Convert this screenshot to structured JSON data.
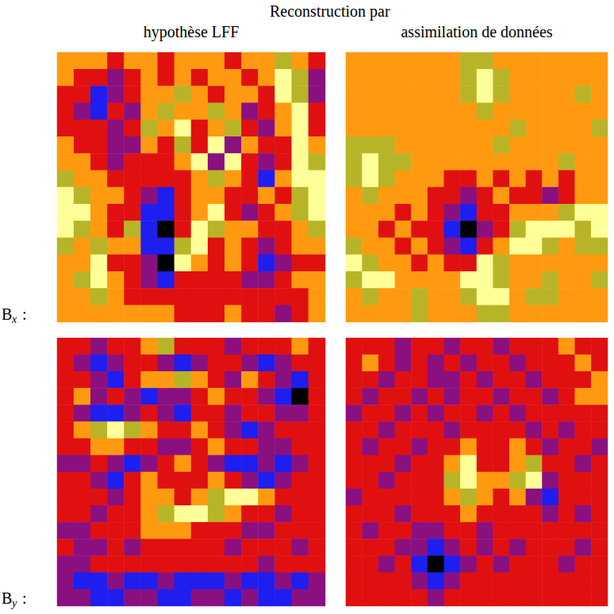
{
  "header": {
    "title": "Reconstruction par",
    "columns": [
      "hypothèse LFF",
      "assimilation de données"
    ]
  },
  "rows": [
    {
      "symbol": "B",
      "subscript": "x",
      "suffix": ":"
    },
    {
      "symbol": "B",
      "subscript": "y",
      "suffix": ":"
    }
  ],
  "chart_data": [
    {
      "type": "heatmap",
      "color_range": [
        0,
        6
      ],
      "cells": [
        [
          4,
          4,
          4,
          3,
          4,
          4,
          3,
          4,
          4,
          4,
          3,
          4,
          4,
          5,
          4,
          3
        ],
        [
          4,
          3,
          3,
          2,
          3,
          4,
          3,
          4,
          3,
          4,
          4,
          3,
          4,
          6,
          5,
          2
        ],
        [
          3,
          3,
          1,
          2,
          3,
          4,
          4,
          5,
          4,
          3,
          4,
          4,
          3,
          6,
          5,
          2
        ],
        [
          3,
          2,
          1,
          3,
          2,
          4,
          5,
          4,
          4,
          5,
          4,
          2,
          3,
          4,
          6,
          3
        ],
        [
          3,
          3,
          3,
          2,
          3,
          5,
          4,
          6,
          3,
          4,
          5,
          3,
          2,
          4,
          6,
          3
        ],
        [
          4,
          3,
          3,
          2,
          2,
          4,
          3,
          5,
          3,
          6,
          2,
          4,
          3,
          3,
          6,
          4
        ],
        [
          4,
          4,
          3,
          2,
          3,
          3,
          3,
          4,
          6,
          2,
          6,
          3,
          2,
          3,
          6,
          5
        ],
        [
          5,
          4,
          4,
          3,
          3,
          3,
          3,
          3,
          4,
          5,
          4,
          3,
          1,
          4,
          6,
          6
        ],
        [
          6,
          5,
          4,
          4,
          3,
          2,
          1,
          3,
          4,
          4,
          3,
          3,
          4,
          3,
          5,
          6
        ],
        [
          6,
          6,
          4,
          3,
          3,
          1,
          1,
          3,
          4,
          6,
          3,
          2,
          3,
          4,
          5,
          6
        ],
        [
          6,
          5,
          4,
          3,
          5,
          1,
          0,
          3,
          6,
          5,
          4,
          4,
          3,
          3,
          4,
          5
        ],
        [
          5,
          4,
          5,
          4,
          4,
          1,
          1,
          5,
          6,
          3,
          4,
          3,
          2,
          3,
          4,
          4
        ],
        [
          4,
          4,
          6,
          3,
          3,
          2,
          0,
          6,
          4,
          3,
          4,
          3,
          1,
          2,
          3,
          3
        ],
        [
          4,
          5,
          6,
          4,
          3,
          2,
          1,
          3,
          3,
          3,
          3,
          2,
          2,
          3,
          4,
          4
        ],
        [
          4,
          4,
          5,
          4,
          3,
          3,
          3,
          3,
          3,
          3,
          3,
          3,
          3,
          3,
          3,
          4
        ],
        [
          4,
          4,
          4,
          4,
          4,
          4,
          4,
          3,
          3,
          3,
          4,
          3,
          3,
          2,
          3,
          4
        ]
      ]
    },
    {
      "type": "heatmap",
      "color_range": [
        0,
        6
      ],
      "cells": [
        [
          4,
          4,
          4,
          4,
          4,
          4,
          4,
          5,
          5,
          4,
          4,
          4,
          4,
          4,
          4,
          4
        ],
        [
          4,
          4,
          4,
          4,
          4,
          4,
          4,
          5,
          6,
          5,
          4,
          4,
          4,
          4,
          4,
          4
        ],
        [
          4,
          4,
          4,
          4,
          4,
          4,
          4,
          5,
          6,
          5,
          4,
          4,
          4,
          4,
          5,
          4
        ],
        [
          4,
          4,
          4,
          4,
          4,
          4,
          4,
          4,
          5,
          4,
          4,
          4,
          4,
          4,
          4,
          4
        ],
        [
          4,
          4,
          4,
          4,
          4,
          4,
          4,
          4,
          4,
          4,
          5,
          4,
          4,
          4,
          4,
          5
        ],
        [
          5,
          5,
          5,
          4,
          4,
          4,
          4,
          4,
          4,
          5,
          4,
          4,
          4,
          4,
          4,
          4
        ],
        [
          5,
          6,
          5,
          5,
          4,
          4,
          4,
          4,
          4,
          4,
          4,
          4,
          4,
          5,
          4,
          4
        ],
        [
          5,
          6,
          5,
          4,
          4,
          4,
          3,
          3,
          4,
          3,
          4,
          3,
          4,
          3,
          4,
          4
        ],
        [
          4,
          5,
          4,
          4,
          4,
          3,
          3,
          2,
          3,
          4,
          3,
          3,
          2,
          3,
          4,
          4
        ],
        [
          4,
          4,
          4,
          3,
          4,
          3,
          2,
          1,
          3,
          3,
          4,
          4,
          4,
          5,
          6,
          6
        ],
        [
          4,
          4,
          3,
          4,
          3,
          3,
          1,
          0,
          2,
          3,
          5,
          6,
          6,
          6,
          5,
          6
        ],
        [
          5,
          4,
          4,
          3,
          4,
          3,
          2,
          1,
          3,
          4,
          6,
          6,
          5,
          4,
          5,
          5
        ],
        [
          6,
          5,
          4,
          4,
          3,
          4,
          3,
          3,
          6,
          5,
          4,
          4,
          4,
          4,
          4,
          4
        ],
        [
          5,
          6,
          6,
          4,
          4,
          4,
          4,
          6,
          6,
          5,
          4,
          4,
          5,
          4,
          4,
          5
        ],
        [
          4,
          5,
          4,
          4,
          5,
          4,
          4,
          5,
          6,
          6,
          4,
          5,
          5,
          4,
          4,
          4
        ],
        [
          4,
          4,
          4,
          4,
          5,
          4,
          4,
          4,
          5,
          5,
          4,
          4,
          4,
          4,
          4,
          4
        ]
      ]
    },
    {
      "type": "heatmap",
      "color_range": [
        0,
        6
      ],
      "cells": [
        [
          3,
          3,
          2,
          3,
          3,
          4,
          5,
          3,
          3,
          3,
          2,
          3,
          3,
          3,
          4,
          3
        ],
        [
          3,
          2,
          1,
          2,
          3,
          3,
          2,
          1,
          2,
          3,
          3,
          2,
          1,
          2,
          3,
          3
        ],
        [
          3,
          3,
          2,
          1,
          3,
          4,
          4,
          5,
          4,
          3,
          2,
          4,
          3,
          2,
          1,
          3
        ],
        [
          3,
          4,
          2,
          3,
          2,
          1,
          2,
          2,
          3,
          4,
          3,
          3,
          2,
          1,
          0,
          3
        ],
        [
          3,
          2,
          1,
          1,
          2,
          3,
          2,
          1,
          3,
          3,
          2,
          3,
          3,
          2,
          2,
          3
        ],
        [
          3,
          4,
          5,
          6,
          5,
          4,
          3,
          3,
          4,
          3,
          2,
          1,
          2,
          3,
          3,
          3
        ],
        [
          3,
          3,
          4,
          4,
          3,
          3,
          2,
          2,
          3,
          4,
          3,
          3,
          2,
          2,
          3,
          3
        ],
        [
          2,
          2,
          3,
          2,
          1,
          2,
          3,
          4,
          3,
          2,
          1,
          1,
          2,
          1,
          2,
          3
        ],
        [
          3,
          3,
          2,
          1,
          3,
          4,
          3,
          3,
          3,
          4,
          3,
          2,
          1,
          2,
          3,
          3
        ],
        [
          3,
          3,
          3,
          2,
          3,
          4,
          4,
          3,
          4,
          5,
          6,
          6,
          4,
          3,
          3,
          3
        ],
        [
          3,
          3,
          2,
          3,
          3,
          4,
          5,
          6,
          6,
          5,
          4,
          3,
          3,
          2,
          3,
          3
        ],
        [
          2,
          2,
          3,
          3,
          3,
          4,
          4,
          4,
          3,
          3,
          3,
          2,
          2,
          3,
          3,
          3
        ],
        [
          3,
          2,
          2,
          3,
          2,
          3,
          3,
          3,
          3,
          3,
          2,
          3,
          3,
          3,
          2,
          3
        ],
        [
          2,
          2,
          3,
          3,
          3,
          3,
          3,
          3,
          3,
          3,
          3,
          3,
          2,
          3,
          3,
          3
        ],
        [
          2,
          1,
          1,
          2,
          1,
          1,
          2,
          1,
          1,
          1,
          2,
          1,
          1,
          2,
          1,
          2
        ],
        [
          2,
          2,
          1,
          1,
          2,
          2,
          1,
          1,
          2,
          2,
          1,
          2,
          1,
          1,
          2,
          2
        ]
      ]
    },
    {
      "type": "heatmap",
      "color_range": [
        0,
        6
      ],
      "cells": [
        [
          3,
          3,
          3,
          2,
          3,
          3,
          2,
          3,
          3,
          2,
          3,
          3,
          3,
          4,
          3,
          3
        ],
        [
          3,
          4,
          3,
          2,
          3,
          2,
          3,
          2,
          3,
          3,
          2,
          3,
          3,
          3,
          4,
          3
        ],
        [
          3,
          3,
          2,
          3,
          3,
          2,
          2,
          3,
          2,
          3,
          3,
          2,
          3,
          3,
          3,
          4
        ],
        [
          3,
          2,
          3,
          3,
          2,
          3,
          2,
          3,
          3,
          2,
          3,
          3,
          2,
          3,
          4,
          4
        ],
        [
          2,
          3,
          3,
          2,
          3,
          2,
          3,
          3,
          2,
          3,
          2,
          3,
          3,
          3,
          3,
          3
        ],
        [
          3,
          3,
          2,
          3,
          3,
          3,
          2,
          3,
          3,
          3,
          3,
          2,
          3,
          2,
          3,
          3
        ],
        [
          3,
          2,
          3,
          3,
          2,
          3,
          3,
          4,
          3,
          3,
          4,
          3,
          2,
          3,
          3,
          2
        ],
        [
          3,
          3,
          3,
          2,
          3,
          3,
          4,
          6,
          3,
          3,
          4,
          5,
          3,
          3,
          2,
          3
        ],
        [
          3,
          3,
          2,
          3,
          3,
          3,
          5,
          6,
          4,
          4,
          5,
          6,
          2,
          3,
          3,
          3
        ],
        [
          2,
          3,
          3,
          3,
          3,
          3,
          4,
          5,
          4,
          3,
          4,
          2,
          1,
          3,
          3,
          3
        ],
        [
          3,
          3,
          3,
          2,
          3,
          3,
          3,
          4,
          3,
          3,
          3,
          3,
          2,
          3,
          2,
          3
        ],
        [
          3,
          2,
          3,
          3,
          2,
          2,
          3,
          3,
          2,
          3,
          3,
          3,
          3,
          3,
          3,
          3
        ],
        [
          3,
          3,
          3,
          2,
          2,
          1,
          2,
          3,
          2,
          3,
          2,
          3,
          3,
          3,
          2,
          3
        ],
        [
          3,
          3,
          2,
          3,
          1,
          0,
          1,
          2,
          3,
          2,
          3,
          3,
          3,
          2,
          3,
          3
        ],
        [
          3,
          3,
          3,
          3,
          2,
          1,
          2,
          3,
          3,
          3,
          3,
          3,
          3,
          3,
          3,
          3
        ],
        [
          3,
          3,
          3,
          3,
          3,
          2,
          3,
          3,
          3,
          3,
          3,
          3,
          3,
          3,
          3,
          3
        ]
      ]
    }
  ]
}
